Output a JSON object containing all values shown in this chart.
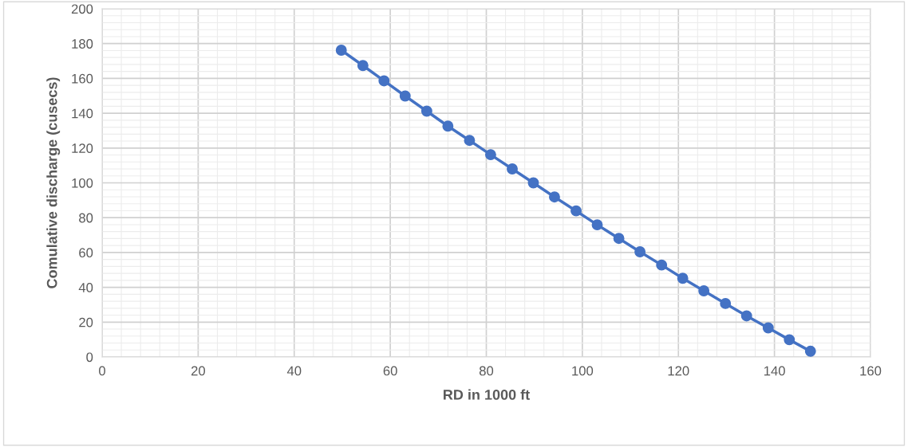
{
  "chart_data": {
    "type": "line",
    "xlabel": "RD in 1000 ft",
    "ylabel": "Comulative discharge (cusecs)",
    "x": [
      49.8,
      54.3,
      58.7,
      63.1,
      67.6,
      72.0,
      76.5,
      80.9,
      85.4,
      89.8,
      94.2,
      98.7,
      103.1,
      107.6,
      112.0,
      116.5,
      120.9,
      125.3,
      129.8,
      134.2,
      138.7,
      143.1,
      147.5
    ],
    "series": [
      {
        "color": "#4472c4",
        "values": [
          176.2,
          167.4,
          158.6,
          149.9,
          141.2,
          132.6,
          124.4,
          116.2,
          108.0,
          100.0,
          91.9,
          83.9,
          75.9,
          68.1,
          60.4,
          52.8,
          45.2,
          38.0,
          30.7,
          23.6,
          16.7,
          9.9,
          3.3
        ]
      }
    ],
    "xlim": [
      0,
      160
    ],
    "xticks": [
      0,
      20,
      40,
      60,
      80,
      100,
      120,
      140,
      160
    ],
    "ylim": [
      0,
      200
    ],
    "yticks": [
      0,
      20,
      40,
      60,
      80,
      100,
      120,
      140,
      160,
      180,
      200
    ],
    "grid": true,
    "marker": "circle",
    "line_style": "solid"
  }
}
